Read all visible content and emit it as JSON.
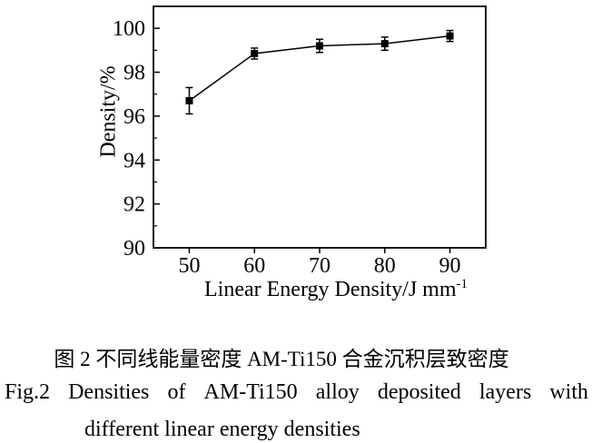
{
  "figure": {
    "caption_zh": "图 2 不同线能量密度 AM-Ti150 合金沉积层致密度",
    "caption_en_line1": "Fig.2 Densities of AM-Ti150 alloy deposited layers with",
    "caption_en_line2": "different linear energy densities"
  },
  "chart_data": {
    "type": "line",
    "x": [
      50,
      60,
      70,
      80,
      90
    ],
    "series": [
      {
        "name": "density",
        "values": [
          96.7,
          98.85,
          99.2,
          99.3,
          99.65
        ],
        "errors": [
          0.6,
          0.25,
          0.3,
          0.3,
          0.25
        ],
        "marker": "square",
        "color": "#000000"
      }
    ],
    "xlabel_base": "Linear Energy Density/J mm",
    "xlabel_sup": "-1",
    "ylabel": "Density/%",
    "xlim": [
      44.5,
      95.5
    ],
    "ylim": [
      90,
      101
    ],
    "xticks": [
      50,
      60,
      70,
      80,
      90
    ],
    "yticks": [
      90,
      92,
      94,
      96,
      98,
      100
    ],
    "y_minor_step": 1,
    "grid": false,
    "legend": "none",
    "axis_color": "#000000",
    "background": "#ffffff"
  }
}
